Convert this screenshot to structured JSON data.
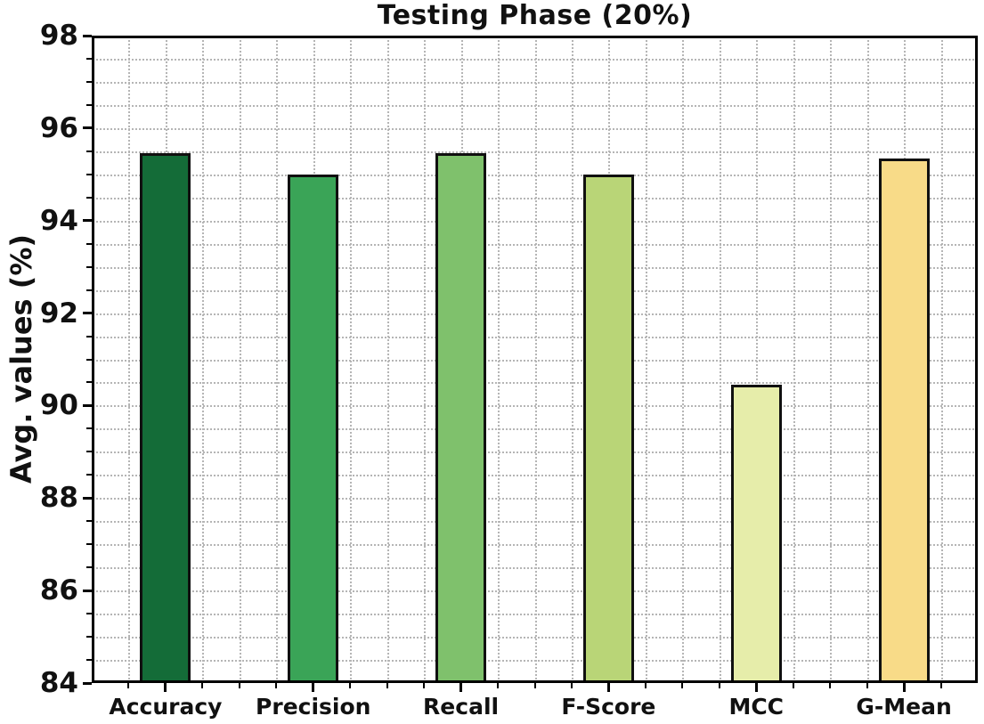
{
  "chart_data": {
    "type": "bar",
    "title": "Testing Phase (20%)",
    "xlabel": "",
    "ylabel": "Avg. values (%)",
    "categories": [
      "Accuracy",
      "Precision",
      "Recall",
      "F-Score",
      "MCC",
      "G-Mean"
    ],
    "values": [
      95.45,
      95.0,
      95.45,
      95.0,
      90.45,
      95.35
    ],
    "bar_colors": [
      "#146c38",
      "#3aa457",
      "#7fc16c",
      "#b9d577",
      "#e6edaa",
      "#f8db88"
    ],
    "bar_edge_color": "#101010",
    "ylim": [
      84,
      98
    ],
    "yticks_major": [
      84,
      86,
      88,
      90,
      92,
      94,
      96,
      98
    ],
    "ytick_minor_step": 0.5,
    "xtick_minor_per_category": 4,
    "grid": {
      "style": "dotted",
      "color": "#b5b5b5",
      "h_spacing_units": 0.5,
      "v_lines": "every quarter category"
    },
    "legend": null,
    "background": "#ffffff"
  }
}
